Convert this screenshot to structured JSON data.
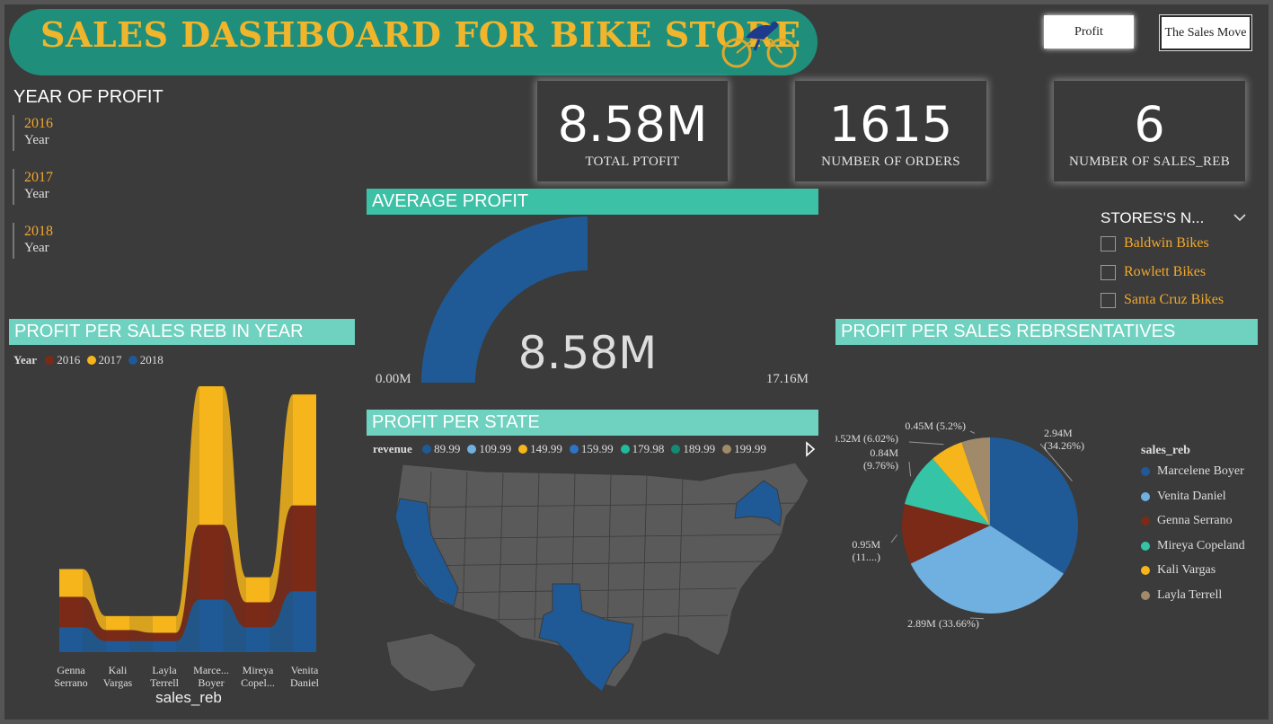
{
  "header": {
    "title": "SALES DASHBOARD FOR BIKE STORE",
    "buttons": {
      "profit": "Profit",
      "sales_move": "The Sales Move"
    }
  },
  "year_filter": {
    "title": "YEAR OF PROFIT",
    "items": [
      {
        "year": "2016",
        "label": "Year"
      },
      {
        "year": "2017",
        "label": "Year"
      },
      {
        "year": "2018",
        "label": "Year"
      }
    ]
  },
  "kpis": [
    {
      "value": "8.58M",
      "label": "TOTAL PTOFIT"
    },
    {
      "value": "1615",
      "label": "NUMBER OF ORDERS"
    },
    {
      "value": "6",
      "label": "NUMBER OF SALES_REB"
    }
  ],
  "stores": {
    "title": "STORES'S N...",
    "items": [
      "Baldwin Bikes",
      "Rowlett Bikes",
      "Santa Cruz Bikes"
    ]
  },
  "colors": {
    "y2016": "#7b2a17",
    "y2017": "#f5b51b",
    "y2018": "#1f5a96",
    "teal": "#5fd1bf",
    "light_blue": "#6fb0e0",
    "mint": "#35c4a6",
    "tan": "#a08a69"
  },
  "chart_data": [
    {
      "type": "area",
      "title": "PROFIT PER SALES REB IN YEAR",
      "xlabel": "sales_reb",
      "legend_title": "Year",
      "categories": [
        "Genna Serrano",
        "Kali Vargas",
        "Layla Terrell",
        "Marce... Boyer",
        "Mireya Copel...",
        "Venita Daniel"
      ],
      "category_lines": [
        [
          "Genna",
          "Serrano"
        ],
        [
          "Kali",
          "Vargas"
        ],
        [
          "Layla",
          "Terrell"
        ],
        [
          "Marce...",
          "Boyer"
        ],
        [
          "Mireya",
          "Copel..."
        ],
        [
          "Venita",
          "Daniel"
        ]
      ],
      "series": [
        {
          "name": "2018",
          "values": [
            0.09,
            0.04,
            0.04,
            0.19,
            0.09,
            0.22
          ]
        },
        {
          "name": "2016",
          "values": [
            0.11,
            0.04,
            0.03,
            0.27,
            0.09,
            0.31
          ]
        },
        {
          "name": "2017",
          "values": [
            0.1,
            0.05,
            0.06,
            0.5,
            0.09,
            0.4
          ]
        }
      ]
    },
    {
      "type": "gauge",
      "title": "AVERAGE PROFIT",
      "value": 8.58,
      "value_label": "8.58M",
      "min_label": "0.00M",
      "max_label": "17.16M",
      "min": 0,
      "max": 17.16
    },
    {
      "type": "map",
      "title": "PROFIT PER STATE",
      "legend_title": "revenue",
      "legend": [
        {
          "label": "89.99",
          "color": "#1f5a96"
        },
        {
          "label": "109.99",
          "color": "#6fb0e0"
        },
        {
          "label": "149.99",
          "color": "#f5b51b"
        },
        {
          "label": "159.99",
          "color": "#2e74c4"
        },
        {
          "label": "179.98",
          "color": "#1fbc9c"
        },
        {
          "label": "189.99",
          "color": "#138a72"
        },
        {
          "label": "199.99",
          "color": "#a08a69"
        }
      ],
      "highlighted_states": [
        "California",
        "Texas",
        "New York"
      ]
    },
    {
      "type": "pie",
      "title": "PROFIT PER SALES REBRSENTATIVES",
      "legend_title": "sales_reb",
      "slices": [
        {
          "name": "Marcelene Boyer",
          "value": 2.94,
          "label": "2.94M\n(34.26%)",
          "color": "#1f5a96"
        },
        {
          "name": "Venita Daniel",
          "value": 2.89,
          "label": "2.89M (33.66%)",
          "color": "#6fb0e0"
        },
        {
          "name": "Genna Serrano",
          "value": 0.95,
          "label": "0.95M\n(11....)",
          "color": "#7b2a17"
        },
        {
          "name": "Mireya Copeland",
          "value": 0.84,
          "label": "0.84M\n(9.76%)",
          "color": "#35c4a6"
        },
        {
          "name": "Kali Vargas",
          "value": 0.52,
          "label": "0.52M (6.02%)",
          "color": "#f5b51b"
        },
        {
          "name": "Layla Terrell",
          "value": 0.45,
          "label": "0.45M (5.2%)",
          "color": "#a08a69"
        }
      ]
    }
  ]
}
